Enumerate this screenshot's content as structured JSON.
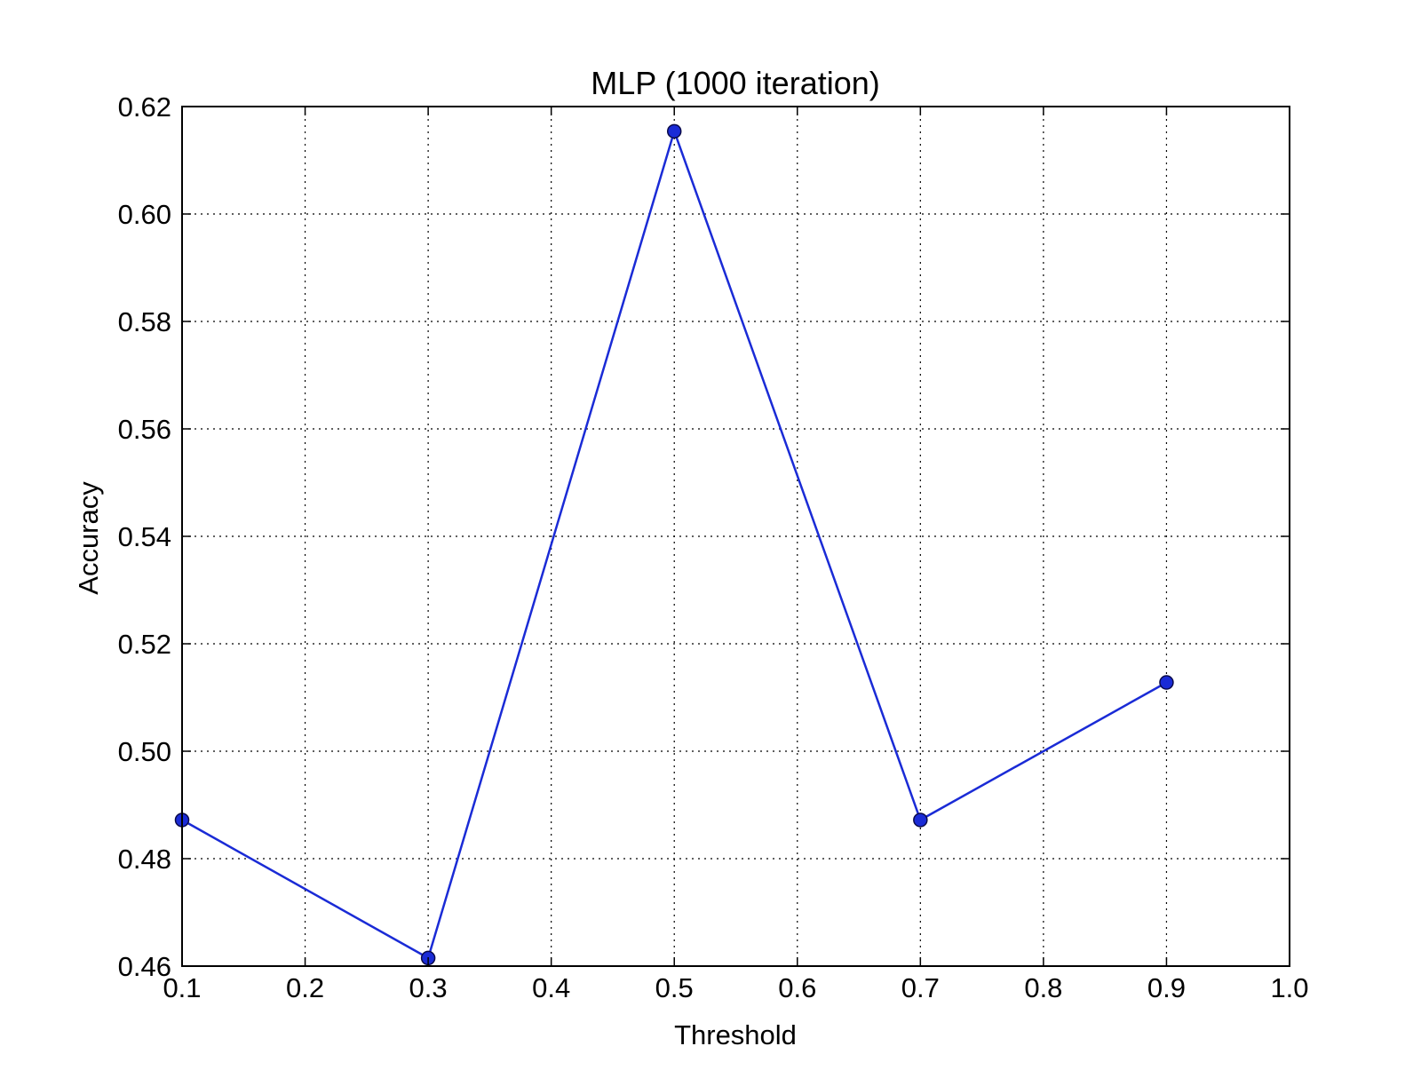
{
  "chart_data": {
    "type": "line",
    "title": "MLP (1000 iteration)",
    "xlabel": "Threshold",
    "ylabel": "Accuracy",
    "xlim": [
      0.1,
      1.0
    ],
    "ylim": [
      0.46,
      0.62
    ],
    "x_ticks": [
      "0.1",
      "0.2",
      "0.3",
      "0.4",
      "0.5",
      "0.6",
      "0.7",
      "0.8",
      "0.9",
      "1.0"
    ],
    "y_ticks": [
      "0.46",
      "0.48",
      "0.50",
      "0.52",
      "0.54",
      "0.56",
      "0.58",
      "0.60",
      "0.62"
    ],
    "grid": true,
    "series": [
      {
        "x": [
          0.1,
          0.3,
          0.5,
          0.7,
          0.9
        ],
        "values": [
          0.4872,
          0.4615,
          0.6154,
          0.4872,
          0.5128
        ],
        "color": "#1a2bd6",
        "marker": "circle"
      }
    ]
  }
}
